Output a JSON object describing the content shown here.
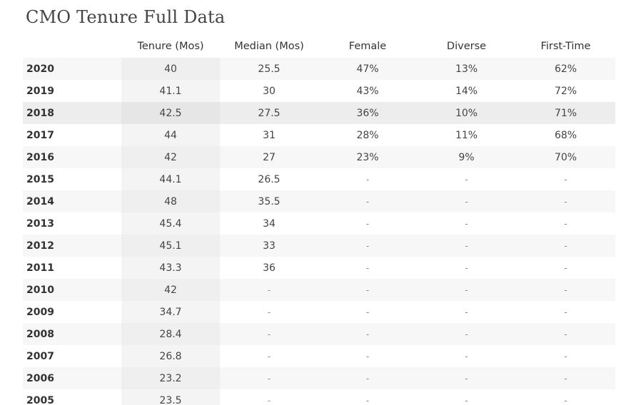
{
  "chart_data": {
    "type": "table",
    "title": "CMO Tenure Full Data",
    "columns": [
      "",
      "Tenure (Mos)",
      "Median (Mos)",
      "Female",
      "Diverse",
      "First-Time"
    ],
    "rows": [
      [
        "2020",
        "40",
        "25.5",
        "47%",
        "13%",
        "62%"
      ],
      [
        "2019",
        "41.1",
        "30",
        "43%",
        "14%",
        "72%"
      ],
      [
        "2018",
        "42.5",
        "27.5",
        "36%",
        "10%",
        "71%"
      ],
      [
        "2017",
        "44",
        "31",
        "28%",
        "11%",
        "68%"
      ],
      [
        "2016",
        "42",
        "27",
        "23%",
        "9%",
        "70%"
      ],
      [
        "2015",
        "44.1",
        "26.5",
        "-",
        "-",
        "-"
      ],
      [
        "2014",
        "48",
        "35.5",
        "-",
        "-",
        "-"
      ],
      [
        "2013",
        "45.4",
        "34",
        "-",
        "-",
        "-"
      ],
      [
        "2012",
        "45.1",
        "33",
        "-",
        "-",
        "-"
      ],
      [
        "2011",
        "43.3",
        "36",
        "-",
        "-",
        "-"
      ],
      [
        "2010",
        "42",
        "-",
        "-",
        "-",
        "-"
      ],
      [
        "2009",
        "34.7",
        "-",
        "-",
        "-",
        "-"
      ],
      [
        "2008",
        "28.4",
        "-",
        "-",
        "-",
        "-"
      ],
      [
        "2007",
        "26.8",
        "-",
        "-",
        "-",
        "-"
      ],
      [
        "2006",
        "23.2",
        "-",
        "-",
        "-",
        "-"
      ],
      [
        "2005",
        "23.5",
        "-",
        "-",
        "-",
        "-"
      ]
    ]
  }
}
